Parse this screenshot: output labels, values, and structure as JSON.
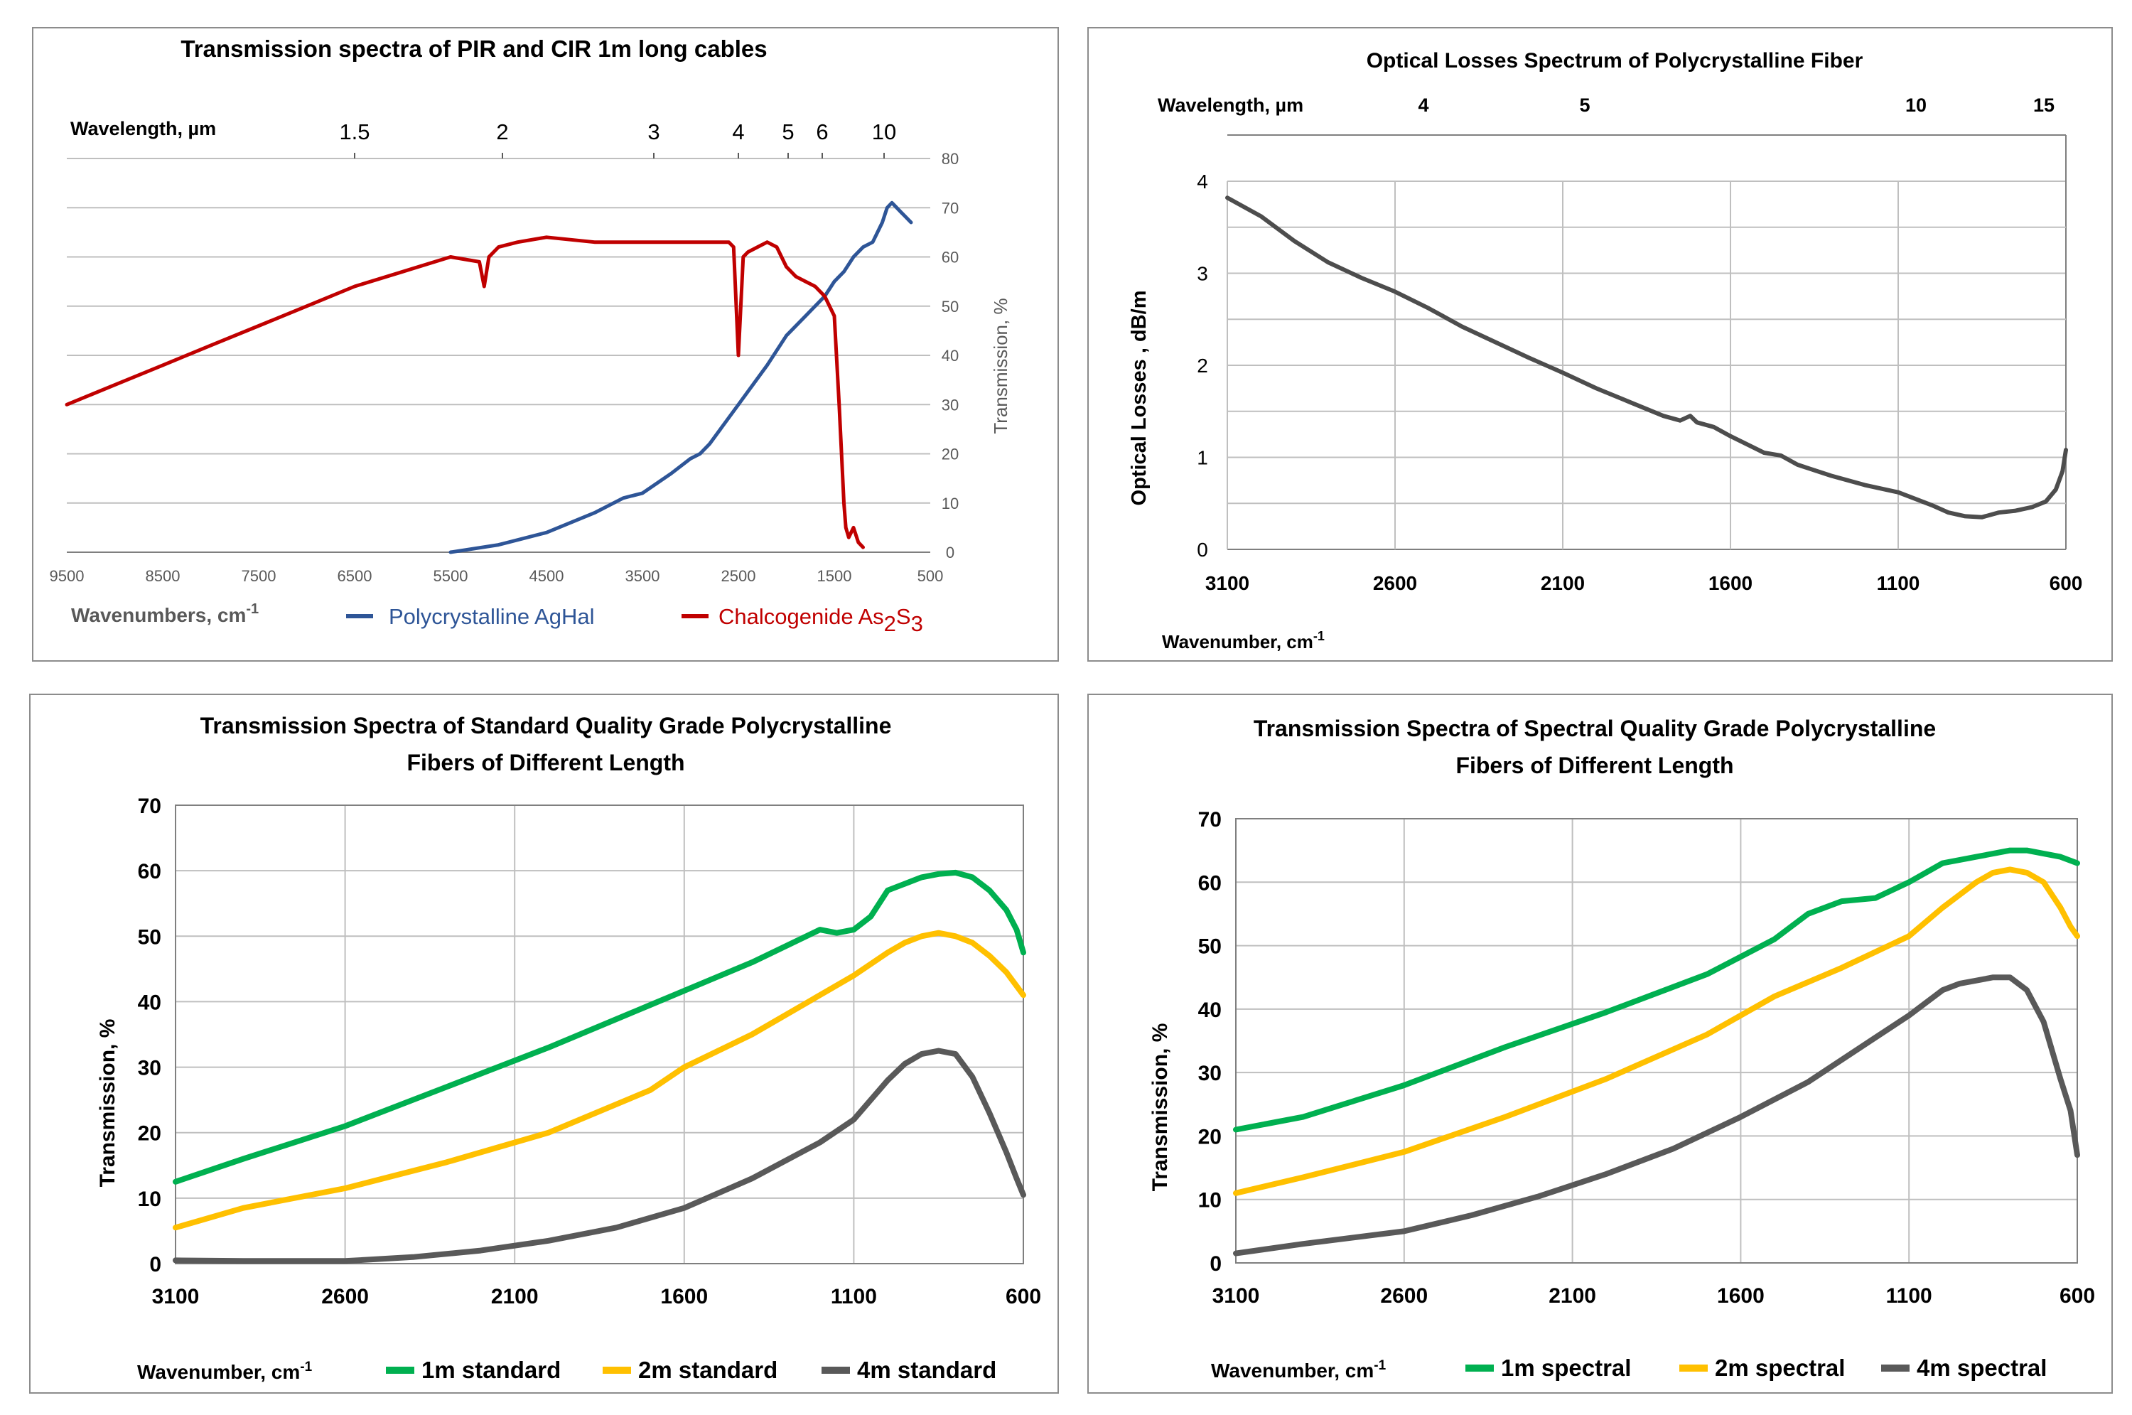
{
  "chart_data": [
    {
      "id": "p1",
      "type": "line",
      "title": "Transmission spectra of PIR and CIR  1m   long cables",
      "xlabel": "Wavenumbers,  cm",
      "xlabel_sup": "-1",
      "top_axis_label": "Wavelength,  µm",
      "ylabel": "Transmission,  %",
      "xlim": [
        9500,
        500
      ],
      "ylim": [
        0,
        80
      ],
      "x_ticks": [
        9500,
        8500,
        7500,
        6500,
        5500,
        4500,
        3500,
        2500,
        1500,
        500
      ],
      "y_ticks": [
        0,
        10,
        20,
        30,
        40,
        50,
        60,
        70,
        80
      ],
      "top_ticks": [
        "1.5",
        "2",
        "3",
        "4",
        "5",
        "6",
        "10"
      ],
      "grid": "horizontal",
      "legend_placement": "bottom",
      "series": [
        {
          "name": "Polycrystalline   AgHal",
          "legend_text": "Polycrystalline   AgHal",
          "color": "#2e5597",
          "x": [
            5500,
            5000,
            4500,
            4000,
            3700,
            3500,
            3200,
            3000,
            2900,
            2800,
            2500,
            2200,
            2000,
            1800,
            1600,
            1500,
            1400,
            1300,
            1200,
            1100,
            1000,
            950,
            900,
            850,
            800,
            750,
            700
          ],
          "y": [
            0,
            1.5,
            4,
            8,
            11,
            12,
            16,
            19,
            20,
            22,
            30,
            38,
            44,
            48,
            52,
            55,
            57,
            60,
            62,
            63,
            67,
            70,
            71,
            70,
            69,
            68,
            67
          ]
        },
        {
          "name": "Chalcogenide As2S3",
          "legend_text": "Chalcogenide As",
          "legend_sub1": "2",
          "legend_mid": "S",
          "legend_sub2": "3",
          "color": "#c00000",
          "x": [
            9500,
            9000,
            8500,
            8000,
            7500,
            7000,
            6500,
            6000,
            5500,
            5200,
            5150,
            5100,
            5000,
            4800,
            4500,
            4000,
            3500,
            3000,
            2600,
            2550,
            2500,
            2450,
            2400,
            2300,
            2200,
            2100,
            2000,
            1900,
            1800,
            1700,
            1600,
            1500,
            1450,
            1400,
            1380,
            1350,
            1300,
            1250,
            1200
          ],
          "y": [
            30,
            34,
            38,
            42,
            46,
            50,
            54,
            57,
            60,
            59,
            54,
            60,
            62,
            63,
            64,
            63,
            63,
            63,
            63,
            62,
            40,
            60,
            61,
            62,
            63,
            62,
            58,
            56,
            55,
            54,
            52,
            48,
            30,
            10,
            5,
            3,
            5,
            2,
            1
          ]
        }
      ]
    },
    {
      "id": "p2",
      "type": "line",
      "title": "Optical   Losses   Spectrum  of  Polycrystalline  Fiber",
      "xlabel": "Wavenumber, cm",
      "xlabel_sup": "-1",
      "top_axis_label": "Wavelength, µm",
      "ylabel": "Optical    Losses ,  dB/m",
      "xlim": [
        3100,
        600
      ],
      "ylim": [
        0,
        4
      ],
      "x_ticks": [
        3100,
        2600,
        2100,
        1600,
        1100,
        600
      ],
      "y_ticks": [
        0,
        1,
        2,
        3,
        4
      ],
      "top_ticks": [
        "4",
        "5",
        "10",
        "15"
      ],
      "grid": "both",
      "series": [
        {
          "name": "",
          "color": "#4d4d4d",
          "x": [
            3100,
            3000,
            2900,
            2800,
            2700,
            2600,
            2500,
            2400,
            2300,
            2200,
            2100,
            2000,
            1900,
            1800,
            1750,
            1720,
            1700,
            1650,
            1600,
            1500,
            1450,
            1400,
            1300,
            1200,
            1100,
            1000,
            950,
            900,
            850,
            800,
            750,
            700,
            660,
            630,
            610,
            600
          ],
          "y": [
            3.82,
            3.62,
            3.35,
            3.12,
            2.95,
            2.8,
            2.62,
            2.42,
            2.25,
            2.08,
            1.92,
            1.75,
            1.6,
            1.45,
            1.4,
            1.45,
            1.38,
            1.33,
            1.23,
            1.05,
            1.02,
            0.92,
            0.8,
            0.7,
            0.62,
            0.48,
            0.4,
            0.36,
            0.35,
            0.4,
            0.42,
            0.46,
            0.52,
            0.65,
            0.85,
            1.08
          ]
        }
      ]
    },
    {
      "id": "p3",
      "type": "line",
      "title": "Transmission  Spectra  of  Standard  Quality  Grade  Polycrystalline",
      "title2": "Fibers of Different Length",
      "xlabel": "Wavenumber, cm",
      "xlabel_sup": "-1",
      "ylabel": "Transmission, %",
      "xlim": [
        3100,
        600
      ],
      "ylim": [
        0,
        70
      ],
      "x_ticks": [
        3100,
        2600,
        2100,
        1600,
        1100,
        600
      ],
      "y_ticks": [
        0,
        10,
        20,
        30,
        40,
        50,
        60,
        70
      ],
      "grid": "both",
      "legend_placement": "bottom",
      "series": [
        {
          "name": "1m standard",
          "legend_text": "1m standard",
          "color": "#00b050",
          "x": [
            3100,
            2900,
            2600,
            2300,
            2000,
            1700,
            1400,
            1200,
            1150,
            1100,
            1050,
            1000,
            950,
            900,
            850,
            800,
            750,
            700,
            650,
            620,
            600
          ],
          "y": [
            12.5,
            16,
            21,
            27,
            33,
            39.5,
            46,
            51,
            50.5,
            51,
            53,
            57,
            58,
            59,
            59.5,
            59.7,
            59,
            57,
            54,
            51,
            47.5
          ]
        },
        {
          "name": "2m standard",
          "legend_text": "2m standard",
          "color": "#ffc000",
          "x": [
            3100,
            2900,
            2600,
            2300,
            2000,
            1700,
            1600,
            1400,
            1200,
            1100,
            1000,
            950,
            900,
            850,
            800,
            750,
            700,
            650,
            600
          ],
          "y": [
            5.5,
            8.5,
            11.5,
            15.5,
            20,
            26.5,
            30,
            35,
            41,
            44,
            47.5,
            49,
            50,
            50.5,
            50,
            49,
            47,
            44.5,
            41
          ]
        },
        {
          "name": "4m standard",
          "legend_text": "4m standard",
          "color": "#595959",
          "x": [
            3100,
            2900,
            2600,
            2400,
            2200,
            2000,
            1800,
            1600,
            1400,
            1200,
            1100,
            1000,
            950,
            900,
            850,
            800,
            750,
            700,
            650,
            620,
            600
          ],
          "y": [
            0.5,
            0.4,
            0.4,
            1,
            2,
            3.5,
            5.5,
            8.5,
            13,
            18.5,
            22,
            28,
            30.5,
            32,
            32.5,
            32,
            28.5,
            23,
            17,
            13,
            10.5
          ]
        }
      ]
    },
    {
      "id": "p4",
      "type": "line",
      "title": "Transmission   Spectra  of  Spectral  Quality  Grade  Polycrystalline",
      "title2": "Fibers of Different Length",
      "xlabel": "Wavenumber,  cm",
      "xlabel_sup": "-1",
      "ylabel": "Transmission, %",
      "xlim": [
        3100,
        600
      ],
      "ylim": [
        0,
        70
      ],
      "x_ticks": [
        3100,
        2600,
        2100,
        1600,
        1100,
        600
      ],
      "y_ticks": [
        0,
        10,
        20,
        30,
        40,
        50,
        60,
        70
      ],
      "grid": "both",
      "legend_placement": "bottom",
      "series": [
        {
          "name": "1m spectral",
          "legend_text": "1m spectral",
          "color": "#00b050",
          "x": [
            3100,
            2900,
            2600,
            2300,
            2000,
            1700,
            1500,
            1400,
            1300,
            1200,
            1100,
            1000,
            900,
            800,
            750,
            700,
            650,
            600
          ],
          "y": [
            21,
            23,
            28,
            34,
            39.5,
            45.5,
            51,
            55,
            57,
            57.5,
            60,
            63,
            64,
            65,
            65,
            64.5,
            64,
            63
          ]
        },
        {
          "name": "2m spectral",
          "legend_text": "2m spectral",
          "color": "#ffc000",
          "x": [
            3100,
            2900,
            2600,
            2300,
            2000,
            1700,
            1500,
            1300,
            1200,
            1100,
            1000,
            900,
            850,
            800,
            750,
            700,
            650,
            620,
            600
          ],
          "y": [
            11,
            13.5,
            17.5,
            23,
            29,
            36,
            42,
            46.5,
            49,
            51.5,
            56,
            60,
            61.5,
            62,
            61.5,
            60,
            56,
            53,
            51.5
          ]
        },
        {
          "name": "4m spectral",
          "legend_text": "4m spectral",
          "color": "#595959",
          "x": [
            3100,
            2900,
            2600,
            2400,
            2200,
            2000,
            1800,
            1600,
            1400,
            1200,
            1100,
            1000,
            950,
            900,
            850,
            800,
            750,
            700,
            650,
            620,
            600
          ],
          "y": [
            1.5,
            3,
            5,
            7.5,
            10.5,
            14,
            18,
            23,
            28.5,
            35.5,
            39,
            43,
            44,
            44.5,
            45,
            45,
            43,
            38,
            29,
            24,
            17
          ]
        }
      ]
    }
  ]
}
